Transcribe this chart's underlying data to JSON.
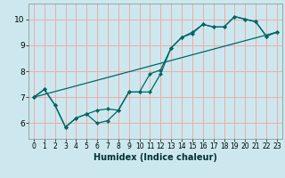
{
  "xlabel": "Humidex (Indice chaleur)",
  "background_color": "#cce8ee",
  "grid_color": "#f0aaaa",
  "line_color": "#006666",
  "xlim": [
    -0.5,
    23.5
  ],
  "ylim": [
    5.4,
    10.6
  ],
  "xticks": [
    0,
    1,
    2,
    3,
    4,
    5,
    6,
    7,
    8,
    9,
    10,
    11,
    12,
    13,
    14,
    15,
    16,
    17,
    18,
    19,
    20,
    21,
    22,
    23
  ],
  "yticks": [
    6,
    7,
    8,
    9,
    10
  ],
  "line1_x": [
    0,
    1,
    2,
    3,
    4,
    5,
    6,
    7,
    8,
    9,
    10,
    11,
    12,
    13,
    14,
    15,
    16,
    17,
    18,
    19,
    20,
    21,
    22,
    23
  ],
  "line1_y": [
    7.0,
    7.3,
    6.7,
    5.85,
    6.2,
    6.35,
    6.5,
    6.55,
    6.5,
    7.2,
    7.2,
    7.9,
    8.05,
    8.9,
    9.3,
    9.45,
    9.8,
    9.7,
    9.7,
    10.1,
    10.0,
    9.9,
    9.35,
    9.5
  ],
  "line2_x": [
    0,
    1,
    2,
    3,
    4,
    5,
    6,
    7,
    8,
    9,
    10,
    11,
    12,
    13,
    14,
    15,
    16,
    17,
    18,
    19,
    20,
    21,
    22,
    23
  ],
  "line2_y": [
    7.0,
    7.3,
    6.7,
    5.85,
    6.2,
    6.35,
    6.0,
    6.1,
    6.5,
    7.2,
    7.2,
    7.2,
    7.9,
    8.9,
    9.3,
    9.5,
    9.8,
    9.7,
    9.7,
    10.1,
    10.0,
    9.9,
    9.35,
    9.5
  ],
  "line3_x": [
    0,
    23
  ],
  "line3_y": [
    7.0,
    9.5
  ]
}
